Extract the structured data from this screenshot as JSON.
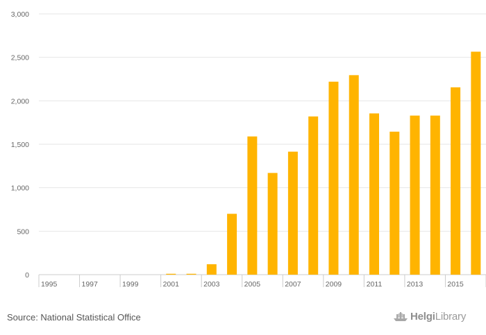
{
  "chart_data": {
    "type": "bar",
    "title": "",
    "xlabel": "",
    "ylabel": "",
    "categories": [
      "1995",
      "1996",
      "1997",
      "1998",
      "1999",
      "2000",
      "2001",
      "2002",
      "2003",
      "2004",
      "2005",
      "2006",
      "2007",
      "2008",
      "2009",
      "2010",
      "2011",
      "2012",
      "2013",
      "2014",
      "2015",
      "2016"
    ],
    "x_tick_labels": [
      "1995",
      "1997",
      "1999",
      "2001",
      "2003",
      "2005",
      "2007",
      "2009",
      "2011",
      "2013",
      "2015"
    ],
    "values": [
      0,
      0,
      0,
      0,
      0,
      0,
      10,
      10,
      120,
      700,
      1590,
      1170,
      1415,
      1820,
      2220,
      2295,
      1855,
      1645,
      1830,
      1830,
      2155,
      2565
    ],
    "ylim": [
      0,
      3000
    ],
    "y_ticks": [
      "0",
      "500",
      "1,000",
      "1,500",
      "2,000",
      "2,500",
      "3,000"
    ],
    "y_tick_values": [
      0,
      500,
      1000,
      1500,
      2000,
      2500,
      3000
    ],
    "grid": true,
    "bar_color": "#FFB400"
  },
  "footer": {
    "source": "Source: National Statistical Office",
    "logo_left": "Helgi",
    "logo_right": "Library",
    "logo_icon": "ship-icon"
  }
}
